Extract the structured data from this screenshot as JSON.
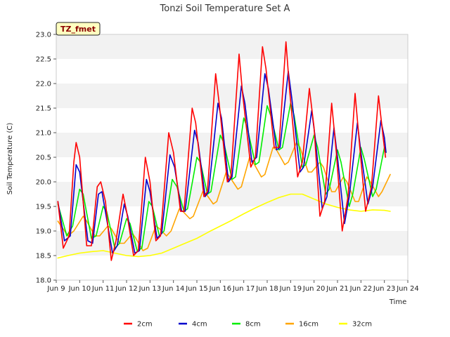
{
  "chart_data": {
    "type": "line",
    "title": "Tonzi Soil Temperature Set A",
    "xlabel": "Time",
    "ylabel": "Soil Temperature (C)",
    "tag": "TZ_fmet",
    "xlim": [
      "Jun 9",
      "Jun 24"
    ],
    "ylim": [
      18.0,
      23.0
    ],
    "x_ticks": [
      "Jun 9",
      "Jun 10",
      "Jun 11",
      "Jun 12",
      "Jun 13",
      "Jun 14",
      "Jun 15",
      "Jun 16",
      "Jun 17",
      "Jun 18",
      "Jun 19",
      "Jun 20",
      "Jun 21",
      "Jun 22",
      "Jun 23",
      "Jun 24"
    ],
    "y_ticks": [
      "18.0",
      "18.5",
      "19.0",
      "19.5",
      "20.0",
      "20.5",
      "21.0",
      "21.5",
      "22.0",
      "22.5",
      "23.0"
    ],
    "grid": "horizontal bands",
    "legend_position": "bottom",
    "x": [
      "Jun 9",
      "Jun 10",
      "Jun 11",
      "Jun 12",
      "Jun 13",
      "Jun 14",
      "Jun 15",
      "Jun 16",
      "Jun 17",
      "Jun 18",
      "Jun 19",
      "Jun 20",
      "Jun 21",
      "Jun 22",
      "Jun 23"
    ],
    "series": [
      {
        "name": "2cm",
        "color": "#ff0000",
        "points": [
          [
            9.07,
            19.6
          ],
          [
            9.3,
            18.65
          ],
          [
            9.55,
            18.9
          ],
          [
            9.75,
            20.4
          ],
          [
            9.85,
            20.8
          ],
          [
            10.0,
            20.5
          ],
          [
            10.3,
            18.7
          ],
          [
            10.5,
            18.7
          ],
          [
            10.75,
            19.9
          ],
          [
            10.9,
            20.0
          ],
          [
            11.1,
            19.6
          ],
          [
            11.35,
            18.4
          ],
          [
            11.55,
            18.8
          ],
          [
            11.85,
            19.75
          ],
          [
            12.0,
            19.4
          ],
          [
            12.3,
            18.5
          ],
          [
            12.5,
            18.6
          ],
          [
            12.8,
            20.5
          ],
          [
            13.0,
            20.0
          ],
          [
            13.25,
            18.8
          ],
          [
            13.45,
            18.9
          ],
          [
            13.8,
            21.0
          ],
          [
            14.0,
            20.6
          ],
          [
            14.3,
            19.4
          ],
          [
            14.45,
            19.4
          ],
          [
            14.8,
            21.5
          ],
          [
            14.95,
            21.2
          ],
          [
            15.3,
            19.7
          ],
          [
            15.45,
            19.8
          ],
          [
            15.8,
            22.2
          ],
          [
            15.95,
            21.6
          ],
          [
            16.3,
            20.0
          ],
          [
            16.45,
            20.1
          ],
          [
            16.8,
            22.6
          ],
          [
            16.95,
            21.8
          ],
          [
            17.3,
            20.3
          ],
          [
            17.5,
            20.5
          ],
          [
            17.8,
            22.75
          ],
          [
            17.95,
            22.3
          ],
          [
            18.3,
            20.7
          ],
          [
            18.5,
            20.7
          ],
          [
            18.8,
            22.85
          ],
          [
            18.95,
            21.9
          ],
          [
            19.3,
            20.1
          ],
          [
            19.5,
            20.4
          ],
          [
            19.8,
            21.9
          ],
          [
            20.0,
            21.1
          ],
          [
            20.25,
            19.3
          ],
          [
            20.45,
            19.6
          ],
          [
            20.75,
            21.6
          ],
          [
            20.95,
            20.6
          ],
          [
            21.2,
            19.0
          ],
          [
            21.45,
            19.7
          ],
          [
            21.75,
            21.8
          ],
          [
            21.95,
            20.7
          ],
          [
            22.2,
            19.4
          ],
          [
            22.45,
            19.9
          ],
          [
            22.75,
            21.75
          ],
          [
            22.95,
            20.9
          ],
          [
            23.05,
            20.5
          ]
        ]
      },
      {
        "name": "4cm",
        "color": "#0000cc",
        "points": [
          [
            9.07,
            19.6
          ],
          [
            9.35,
            18.8
          ],
          [
            9.6,
            18.9
          ],
          [
            9.85,
            20.35
          ],
          [
            10.0,
            20.2
          ],
          [
            10.35,
            18.8
          ],
          [
            10.55,
            18.75
          ],
          [
            10.8,
            19.75
          ],
          [
            10.95,
            19.8
          ],
          [
            11.4,
            18.55
          ],
          [
            11.6,
            18.7
          ],
          [
            11.9,
            19.55
          ],
          [
            12.05,
            19.3
          ],
          [
            12.35,
            18.55
          ],
          [
            12.55,
            18.6
          ],
          [
            12.85,
            20.05
          ],
          [
            13.0,
            19.8
          ],
          [
            13.3,
            18.85
          ],
          [
            13.5,
            18.95
          ],
          [
            13.85,
            20.55
          ],
          [
            14.05,
            20.3
          ],
          [
            14.35,
            19.4
          ],
          [
            14.5,
            19.4
          ],
          [
            14.9,
            21.05
          ],
          [
            15.05,
            20.8
          ],
          [
            15.35,
            19.7
          ],
          [
            15.5,
            19.8
          ],
          [
            15.9,
            21.6
          ],
          [
            16.05,
            21.3
          ],
          [
            16.35,
            20.0
          ],
          [
            16.5,
            20.1
          ],
          [
            16.9,
            21.95
          ],
          [
            17.05,
            21.6
          ],
          [
            17.35,
            20.4
          ],
          [
            17.55,
            20.5
          ],
          [
            17.9,
            22.2
          ],
          [
            18.05,
            21.9
          ],
          [
            18.4,
            20.65
          ],
          [
            18.55,
            20.7
          ],
          [
            18.9,
            22.25
          ],
          [
            19.05,
            21.7
          ],
          [
            19.4,
            20.2
          ],
          [
            19.55,
            20.3
          ],
          [
            19.9,
            21.45
          ],
          [
            20.05,
            20.9
          ],
          [
            20.35,
            19.45
          ],
          [
            20.55,
            19.7
          ],
          [
            20.85,
            21.1
          ],
          [
            21.0,
            20.5
          ],
          [
            21.3,
            19.15
          ],
          [
            21.5,
            19.7
          ],
          [
            21.85,
            21.2
          ],
          [
            22.0,
            20.6
          ],
          [
            22.3,
            19.55
          ],
          [
            22.5,
            19.9
          ],
          [
            22.85,
            21.25
          ],
          [
            23.0,
            20.9
          ],
          [
            23.07,
            20.6
          ]
        ]
      },
      {
        "name": "8cm",
        "color": "#00ee00",
        "points": [
          [
            9.07,
            19.55
          ],
          [
            9.45,
            18.9
          ],
          [
            9.7,
            19.1
          ],
          [
            10.0,
            19.85
          ],
          [
            10.15,
            19.75
          ],
          [
            10.5,
            18.85
          ],
          [
            10.7,
            18.9
          ],
          [
            11.0,
            19.5
          ],
          [
            11.15,
            19.4
          ],
          [
            11.5,
            18.65
          ],
          [
            11.7,
            18.75
          ],
          [
            12.0,
            19.25
          ],
          [
            12.15,
            19.15
          ],
          [
            12.45,
            18.6
          ],
          [
            12.65,
            18.65
          ],
          [
            12.95,
            19.6
          ],
          [
            13.1,
            19.5
          ],
          [
            13.4,
            18.9
          ],
          [
            13.6,
            19.0
          ],
          [
            13.95,
            20.05
          ],
          [
            14.15,
            19.9
          ],
          [
            14.45,
            19.4
          ],
          [
            14.6,
            19.45
          ],
          [
            15.0,
            20.5
          ],
          [
            15.15,
            20.4
          ],
          [
            15.45,
            19.75
          ],
          [
            15.6,
            19.8
          ],
          [
            16.0,
            20.95
          ],
          [
            16.15,
            20.8
          ],
          [
            16.5,
            20.05
          ],
          [
            16.65,
            20.1
          ],
          [
            17.0,
            21.3
          ],
          [
            17.15,
            21.1
          ],
          [
            17.5,
            20.35
          ],
          [
            17.65,
            20.4
          ],
          [
            18.0,
            21.55
          ],
          [
            18.15,
            21.35
          ],
          [
            18.5,
            20.65
          ],
          [
            18.65,
            20.7
          ],
          [
            19.0,
            21.6
          ],
          [
            19.15,
            21.35
          ],
          [
            19.5,
            20.3
          ],
          [
            19.65,
            20.35
          ],
          [
            20.0,
            20.95
          ],
          [
            20.15,
            20.7
          ],
          [
            20.5,
            19.75
          ],
          [
            20.65,
            19.85
          ],
          [
            21.0,
            20.65
          ],
          [
            21.15,
            20.4
          ],
          [
            21.5,
            19.5
          ],
          [
            21.65,
            19.75
          ],
          [
            22.0,
            20.7
          ],
          [
            22.15,
            20.45
          ],
          [
            22.5,
            19.7
          ],
          [
            22.65,
            19.85
          ],
          [
            23.0,
            20.7
          ],
          [
            23.07,
            20.6
          ]
        ]
      },
      {
        "name": "16cm",
        "color": "#ffa500",
        "points": [
          [
            9.07,
            19.2
          ],
          [
            9.5,
            18.9
          ],
          [
            9.75,
            19.0
          ],
          [
            10.15,
            19.3
          ],
          [
            10.3,
            19.2
          ],
          [
            10.65,
            18.9
          ],
          [
            10.85,
            18.9
          ],
          [
            11.2,
            19.1
          ],
          [
            11.35,
            19.05
          ],
          [
            11.7,
            18.75
          ],
          [
            11.9,
            18.75
          ],
          [
            12.25,
            18.95
          ],
          [
            12.4,
            18.85
          ],
          [
            12.7,
            18.6
          ],
          [
            12.9,
            18.65
          ],
          [
            13.25,
            19.1
          ],
          [
            13.4,
            19.05
          ],
          [
            13.7,
            18.9
          ],
          [
            13.9,
            19.0
          ],
          [
            14.25,
            19.45
          ],
          [
            14.4,
            19.4
          ],
          [
            14.7,
            19.25
          ],
          [
            14.85,
            19.3
          ],
          [
            15.25,
            19.8
          ],
          [
            15.4,
            19.75
          ],
          [
            15.7,
            19.55
          ],
          [
            15.85,
            19.6
          ],
          [
            16.25,
            20.2
          ],
          [
            16.4,
            20.1
          ],
          [
            16.75,
            19.85
          ],
          [
            16.9,
            19.9
          ],
          [
            17.25,
            20.5
          ],
          [
            17.4,
            20.4
          ],
          [
            17.75,
            20.1
          ],
          [
            17.9,
            20.15
          ],
          [
            18.25,
            20.7
          ],
          [
            18.4,
            20.65
          ],
          [
            18.75,
            20.35
          ],
          [
            18.9,
            20.4
          ],
          [
            19.25,
            20.8
          ],
          [
            19.4,
            20.7
          ],
          [
            19.75,
            20.2
          ],
          [
            19.9,
            20.2
          ],
          [
            20.25,
            20.4
          ],
          [
            20.4,
            20.3
          ],
          [
            20.75,
            19.8
          ],
          [
            20.9,
            19.8
          ],
          [
            21.25,
            20.1
          ],
          [
            21.4,
            20.0
          ],
          [
            21.75,
            19.6
          ],
          [
            21.9,
            19.6
          ],
          [
            22.25,
            20.1
          ],
          [
            22.4,
            20.0
          ],
          [
            22.75,
            19.7
          ],
          [
            22.9,
            19.8
          ],
          [
            23.25,
            20.15
          ]
        ]
      },
      {
        "name": "32cm",
        "color": "#ffff00",
        "points": [
          [
            9.07,
            18.45
          ],
          [
            9.5,
            18.5
          ],
          [
            10.0,
            18.55
          ],
          [
            10.5,
            18.58
          ],
          [
            11.0,
            18.6
          ],
          [
            11.5,
            18.55
          ],
          [
            12.0,
            18.5
          ],
          [
            12.5,
            18.48
          ],
          [
            13.0,
            18.5
          ],
          [
            13.5,
            18.55
          ],
          [
            14.0,
            18.65
          ],
          [
            14.5,
            18.75
          ],
          [
            15.0,
            18.85
          ],
          [
            15.5,
            18.98
          ],
          [
            16.0,
            19.1
          ],
          [
            16.5,
            19.22
          ],
          [
            17.0,
            19.35
          ],
          [
            17.5,
            19.47
          ],
          [
            18.0,
            19.58
          ],
          [
            18.5,
            19.68
          ],
          [
            19.0,
            19.75
          ],
          [
            19.5,
            19.75
          ],
          [
            20.0,
            19.65
          ],
          [
            20.5,
            19.55
          ],
          [
            21.0,
            19.48
          ],
          [
            21.5,
            19.43
          ],
          [
            22.0,
            19.4
          ],
          [
            22.5,
            19.43
          ],
          [
            23.0,
            19.42
          ],
          [
            23.25,
            19.4
          ]
        ]
      }
    ]
  }
}
